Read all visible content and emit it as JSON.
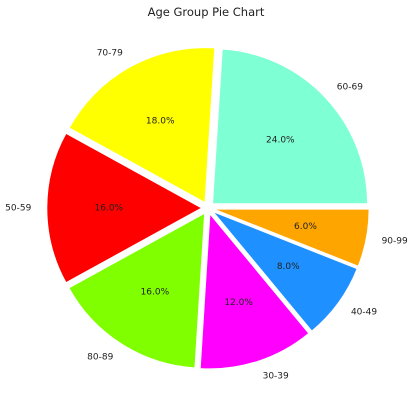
{
  "chart_data": {
    "type": "pie",
    "title": "Age Group Pie Chart",
    "slices": [
      {
        "label": "60-69",
        "value": 24.0,
        "pct_label": "24.0%",
        "color": "#7FFFD4"
      },
      {
        "label": "70-79",
        "value": 18.0,
        "pct_label": "18.0%",
        "color": "#FFFF00"
      },
      {
        "label": "50-59",
        "value": 16.0,
        "pct_label": "16.0%",
        "color": "#FF0000"
      },
      {
        "label": "80-89",
        "value": 16.0,
        "pct_label": "16.0%",
        "color": "#7FFF00"
      },
      {
        "label": "30-39",
        "value": 12.0,
        "pct_label": "12.0%",
        "color": "#FF00FF"
      },
      {
        "label": "40-49",
        "value": 8.0,
        "pct_label": "8.0%",
        "color": "#1E90FF"
      },
      {
        "label": "90-99",
        "value": 6.0,
        "pct_label": "6.0%",
        "color": "#FFA500"
      }
    ],
    "start_angle_deg": 0,
    "direction": "counterclockwise",
    "exploded": true,
    "legend": "none"
  }
}
